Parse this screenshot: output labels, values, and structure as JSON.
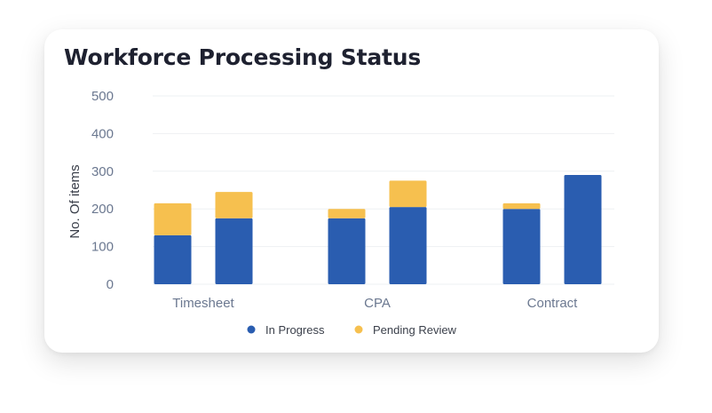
{
  "chart_data": {
    "type": "bar",
    "stacked": true,
    "title": "Workforce Processing Status",
    "xlabel": "",
    "ylabel": "No. Of items",
    "ylim": [
      0,
      500
    ],
    "yticks": [
      "0",
      "100",
      "200",
      "300",
      "400",
      "500"
    ],
    "grid": true,
    "legend_position": "bottom",
    "categories": [
      "Timesheet",
      "CPA",
      "Contract"
    ],
    "bars_per_category": 2,
    "series": [
      {
        "name": "In Progress",
        "color": "#2a5db0",
        "values": [
          [
            130,
            175
          ],
          [
            175,
            205
          ],
          [
            200,
            290
          ]
        ]
      },
      {
        "name": "Pending Review",
        "color": "#f6c04f",
        "values": [
          [
            85,
            70
          ],
          [
            25,
            70
          ],
          [
            15,
            0
          ]
        ]
      }
    ]
  }
}
